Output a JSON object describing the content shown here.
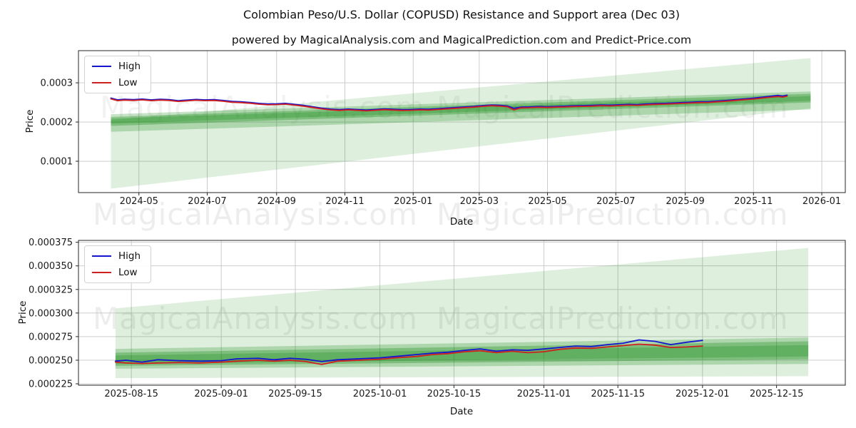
{
  "figure": {
    "title": "Colombian Peso/U.S. Dollar (COPUSD) Resistance and Support area (Dec 03)",
    "subtitle": "powered by MagicalAnalysis.com and MagicalPrediction.com and Predict-Price.com",
    "watermark_left": "MagicalAnalysis.com",
    "watermark_right": "MagicalPrediction.com",
    "background": "#ffffff"
  },
  "chart_data": [
    {
      "type": "line",
      "xlabel": "Date",
      "ylabel": "Price",
      "series_names": [
        "High",
        "Low"
      ],
      "colors": {
        "high": "#1515cf",
        "low": "#cf1f1f",
        "band": "#008000"
      },
      "legend_position": "upper left",
      "grid": true,
      "x_domain": [
        "2024-03-08",
        "2026-01-22"
      ],
      "y_domain": [
        2e-05,
        0.000382
      ],
      "x_ticks": [
        [
          "2024-05-01",
          "2024-05"
        ],
        [
          "2024-07-01",
          "2024-07"
        ],
        [
          "2024-09-01",
          "2024-09"
        ],
        [
          "2024-11-01",
          "2024-11"
        ],
        [
          "2025-01-01",
          "2025-01"
        ],
        [
          "2025-03-01",
          "2025-03"
        ],
        [
          "2025-05-01",
          "2025-05"
        ],
        [
          "2025-07-01",
          "2025-07"
        ],
        [
          "2025-09-01",
          "2025-09"
        ],
        [
          "2025-11-01",
          "2025-11"
        ],
        [
          "2026-01-01",
          "2026-01"
        ]
      ],
      "y_ticks": [
        [
          0.0001,
          "0.0001"
        ],
        [
          0.0002,
          "0.0002"
        ],
        [
          0.0003,
          "0.0003"
        ]
      ],
      "bands": [
        {
          "name": "outer-support-resistance-fan",
          "color": "#008000",
          "opacity": 0.13,
          "x": [
            "2024-04-06",
            "2025-12-22"
          ],
          "top": [
            0.000205,
            0.000363
          ],
          "bottom": [
            3e-05,
            0.000235
          ]
        },
        {
          "name": "mid-support-resistance-band",
          "color": "#008000",
          "opacity": 0.22,
          "x": [
            "2024-04-06",
            "2025-12-22"
          ],
          "top": [
            0.00022,
            0.000278
          ],
          "bottom": [
            0.000175,
            0.000232
          ]
        },
        {
          "name": "inner-support-resistance-band",
          "color": "#008000",
          "opacity": 0.28,
          "x": [
            "2024-04-06",
            "2025-12-22"
          ],
          "top": [
            0.000213,
            0.000272
          ],
          "bottom": [
            0.00019,
            0.00025
          ]
        },
        {
          "name": "core-support-resistance-band",
          "color": "#008000",
          "opacity": 0.22,
          "x": [
            "2024-04-06",
            "2025-12-22"
          ],
          "top": [
            0.000209,
            0.000266
          ],
          "bottom": [
            0.000196,
            0.000254
          ]
        }
      ],
      "columns": [
        "date",
        "high",
        "low"
      ],
      "rows": [
        [
          "2024-04-06",
          0.000261,
          0.000259
        ],
        [
          "2024-04-12",
          0.0002565,
          0.0002545
        ],
        [
          "2024-04-18",
          0.000258,
          0.000256
        ],
        [
          "2024-04-26",
          0.000257,
          0.000255
        ],
        [
          "2024-05-04",
          0.0002585,
          0.0002565
        ],
        [
          "2024-05-12",
          0.0002565,
          0.0002545
        ],
        [
          "2024-05-20",
          0.000258,
          0.000256
        ],
        [
          "2024-05-28",
          0.000257,
          0.000255
        ],
        [
          "2024-06-05",
          0.0002545,
          0.0002525
        ],
        [
          "2024-06-13",
          0.000256,
          0.000254
        ],
        [
          "2024-06-21",
          0.0002575,
          0.0002555
        ],
        [
          "2024-06-29",
          0.0002565,
          0.0002545
        ],
        [
          "2024-07-07",
          0.000257,
          0.000255
        ],
        [
          "2024-07-15",
          0.000255,
          0.000253
        ],
        [
          "2024-07-23",
          0.0002525,
          0.0002505
        ],
        [
          "2024-07-31",
          0.0002515,
          0.0002495
        ],
        [
          "2024-08-08",
          0.00025,
          0.000248
        ],
        [
          "2024-08-16",
          0.0002475,
          0.0002455
        ],
        [
          "2024-08-24",
          0.000246,
          0.000244
        ],
        [
          "2024-09-01",
          0.0002465,
          0.0002445
        ],
        [
          "2024-09-09",
          0.0002475,
          0.0002455
        ],
        [
          "2024-09-17",
          0.000245,
          0.000243
        ],
        [
          "2024-09-25",
          0.0002425,
          0.0002405
        ],
        [
          "2024-10-03",
          0.000239,
          0.000237
        ],
        [
          "2024-10-11",
          0.0002355,
          0.0002335
        ],
        [
          "2024-10-19",
          0.000233,
          0.000231
        ],
        [
          "2024-10-27",
          0.0002315,
          0.0002295
        ],
        [
          "2024-11-04",
          0.000233,
          0.000231
        ],
        [
          "2024-11-12",
          0.000232,
          0.00023
        ],
        [
          "2024-11-20",
          0.0002305,
          0.0002285
        ],
        [
          "2024-11-28",
          0.000232,
          0.00023
        ],
        [
          "2024-12-06",
          0.0002335,
          0.0002315
        ],
        [
          "2024-12-14",
          0.0002325,
          0.0002305
        ],
        [
          "2024-12-22",
          0.0002315,
          0.0002295
        ],
        [
          "2024-12-30",
          0.000232,
          0.00023
        ],
        [
          "2025-01-07",
          0.000233,
          0.000231
        ],
        [
          "2025-01-15",
          0.0002325,
          0.0002305
        ],
        [
          "2025-01-23",
          0.000234,
          0.000232
        ],
        [
          "2025-01-31",
          0.0002355,
          0.0002335
        ],
        [
          "2025-02-08",
          0.000237,
          0.000235
        ],
        [
          "2025-02-16",
          0.0002385,
          0.0002365
        ],
        [
          "2025-02-24",
          0.00024,
          0.000238
        ],
        [
          "2025-03-04",
          0.000242,
          0.00024
        ],
        [
          "2025-03-12",
          0.0002435,
          0.0002415
        ],
        [
          "2025-03-20",
          0.0002425,
          0.0002405
        ],
        [
          "2025-03-26",
          0.000241,
          0.000239
        ],
        [
          "2025-04-01",
          0.000235,
          0.000231
        ],
        [
          "2025-04-07",
          0.000238,
          0.000236
        ],
        [
          "2025-04-15",
          0.0002385,
          0.0002365
        ],
        [
          "2025-04-23",
          0.0002395,
          0.0002375
        ],
        [
          "2025-05-01",
          0.000239,
          0.000237
        ],
        [
          "2025-05-09",
          0.00024,
          0.000238
        ],
        [
          "2025-05-17",
          0.0002405,
          0.0002385
        ],
        [
          "2025-05-25",
          0.0002415,
          0.0002395
        ],
        [
          "2025-06-02",
          0.000242,
          0.00024
        ],
        [
          "2025-06-10",
          0.0002425,
          0.0002405
        ],
        [
          "2025-06-18",
          0.0002435,
          0.0002415
        ],
        [
          "2025-06-26",
          0.000243,
          0.000241
        ],
        [
          "2025-07-04",
          0.000244,
          0.000242
        ],
        [
          "2025-07-12",
          0.000245,
          0.000243
        ],
        [
          "2025-07-20",
          0.0002445,
          0.0002425
        ],
        [
          "2025-07-28",
          0.000246,
          0.000244
        ],
        [
          "2025-08-05",
          0.000247,
          0.000245
        ],
        [
          "2025-08-13",
          0.0002475,
          0.0002455
        ],
        [
          "2025-08-21",
          0.0002485,
          0.0002465
        ],
        [
          "2025-08-29",
          0.0002495,
          0.0002475
        ],
        [
          "2025-09-06",
          0.0002505,
          0.0002485
        ],
        [
          "2025-09-14",
          0.0002515,
          0.0002495
        ],
        [
          "2025-09-22",
          0.000252,
          0.00025
        ],
        [
          "2025-09-30",
          0.0002535,
          0.0002515
        ],
        [
          "2025-10-08",
          0.000255,
          0.000253
        ],
        [
          "2025-10-16",
          0.000257,
          0.000255
        ],
        [
          "2025-10-24",
          0.000259,
          0.000257
        ],
        [
          "2025-11-01",
          0.000261,
          0.0002585
        ],
        [
          "2025-11-09",
          0.0002635,
          0.000261
        ],
        [
          "2025-11-17",
          0.000266,
          0.0002635
        ],
        [
          "2025-11-23",
          0.000268,
          0.000265
        ],
        [
          "2025-11-27",
          0.000266,
          0.0002635
        ],
        [
          "2025-12-01",
          0.0002685,
          0.000266
        ]
      ]
    },
    {
      "type": "line",
      "xlabel": "Date",
      "ylabel": "Price",
      "series_names": [
        "High",
        "Low"
      ],
      "colors": {
        "high": "#1515cf",
        "low": "#cf1f1f",
        "band": "#008000"
      },
      "legend_position": "upper left",
      "grid": true,
      "x_domain": [
        "2025-08-05",
        "2025-12-28"
      ],
      "y_domain": [
        0.0002235,
        0.000377
      ],
      "x_ticks": [
        [
          "2025-08-15",
          "2025-08-15"
        ],
        [
          "2025-09-01",
          "2025-09-01"
        ],
        [
          "2025-09-15",
          "2025-09-15"
        ],
        [
          "2025-10-01",
          "2025-10-01"
        ],
        [
          "2025-10-15",
          "2025-10-15"
        ],
        [
          "2025-11-01",
          "2025-11-01"
        ],
        [
          "2025-11-15",
          "2025-11-15"
        ],
        [
          "2025-12-01",
          "2025-12-01"
        ],
        [
          "2025-12-15",
          "2025-12-15"
        ]
      ],
      "y_ticks": [
        [
          0.000225,
          "0.000225"
        ],
        [
          0.00025,
          "0.000250"
        ],
        [
          0.000275,
          "0.000275"
        ],
        [
          0.0003,
          "0.000300"
        ],
        [
          0.000325,
          "0.000325"
        ],
        [
          0.00035,
          "0.000350"
        ],
        [
          0.000375,
          "0.000375"
        ]
      ],
      "bands": [
        {
          "name": "outer-support-resistance-fan",
          "color": "#008000",
          "opacity": 0.13,
          "x": [
            "2025-08-12",
            "2025-12-21"
          ],
          "top": [
            0.000305,
            0.000369
          ],
          "bottom": [
            0.000231,
            0.000233
          ]
        },
        {
          "name": "mid-support-resistance-band",
          "color": "#008000",
          "opacity": 0.22,
          "x": [
            "2025-08-12",
            "2025-12-21"
          ],
          "top": [
            0.000262,
            0.000274
          ],
          "bottom": [
            0.000241,
            0.000246
          ]
        },
        {
          "name": "inner-support-resistance-band",
          "color": "#008000",
          "opacity": 0.28,
          "x": [
            "2025-08-12",
            "2025-12-21"
          ],
          "top": [
            0.000258,
            0.00027
          ],
          "bottom": [
            0.000244,
            0.000251
          ]
        },
        {
          "name": "core-support-resistance-band",
          "color": "#008000",
          "opacity": 0.22,
          "x": [
            "2025-08-12",
            "2025-12-21"
          ],
          "top": [
            0.000255,
            0.000266
          ],
          "bottom": [
            0.000246,
            0.000254
          ]
        }
      ],
      "columns": [
        "date",
        "high",
        "low"
      ],
      "rows": [
        [
          "2025-08-12",
          0.000249,
          0.000248
        ],
        [
          "2025-08-14",
          0.00025,
          0.000247
        ],
        [
          "2025-08-17",
          0.000248,
          0.0002465
        ],
        [
          "2025-08-20",
          0.0002505,
          0.000247
        ],
        [
          "2025-08-24",
          0.0002495,
          0.0002475
        ],
        [
          "2025-08-28",
          0.000249,
          0.000247
        ],
        [
          "2025-09-01",
          0.0002495,
          0.000248
        ],
        [
          "2025-09-04",
          0.0002515,
          0.000249
        ],
        [
          "2025-09-08",
          0.000252,
          0.00025
        ],
        [
          "2025-09-11",
          0.0002505,
          0.000249
        ],
        [
          "2025-09-14",
          0.000252,
          0.00025
        ],
        [
          "2025-09-17",
          0.000251,
          0.0002485
        ],
        [
          "2025-09-20",
          0.0002485,
          0.0002455
        ],
        [
          "2025-09-23",
          0.0002505,
          0.000249
        ],
        [
          "2025-09-27",
          0.0002515,
          0.00025
        ],
        [
          "2025-10-01",
          0.0002525,
          0.000251
        ],
        [
          "2025-10-04",
          0.000254,
          0.0002525
        ],
        [
          "2025-10-08",
          0.000256,
          0.000254
        ],
        [
          "2025-10-11",
          0.0002575,
          0.000256
        ],
        [
          "2025-10-14",
          0.0002585,
          0.000257
        ],
        [
          "2025-10-17",
          0.0002605,
          0.000259
        ],
        [
          "2025-10-20",
          0.000262,
          0.00026
        ],
        [
          "2025-10-23",
          0.0002595,
          0.000258
        ],
        [
          "2025-10-26",
          0.000261,
          0.0002595
        ],
        [
          "2025-10-29",
          0.0002605,
          0.000258
        ],
        [
          "2025-11-01",
          0.000262,
          0.000259
        ],
        [
          "2025-11-04",
          0.0002635,
          0.0002615
        ],
        [
          "2025-11-07",
          0.000265,
          0.000263
        ],
        [
          "2025-11-10",
          0.0002645,
          0.0002625
        ],
        [
          "2025-11-13",
          0.0002665,
          0.000264
        ],
        [
          "2025-11-16",
          0.000268,
          0.0002655
        ],
        [
          "2025-11-19",
          0.0002715,
          0.000267
        ],
        [
          "2025-11-22",
          0.00027,
          0.000266
        ],
        [
          "2025-11-25",
          0.0002665,
          0.0002635
        ],
        [
          "2025-11-28",
          0.000269,
          0.000264
        ],
        [
          "2025-12-01",
          0.000271,
          0.000265
        ]
      ]
    }
  ]
}
